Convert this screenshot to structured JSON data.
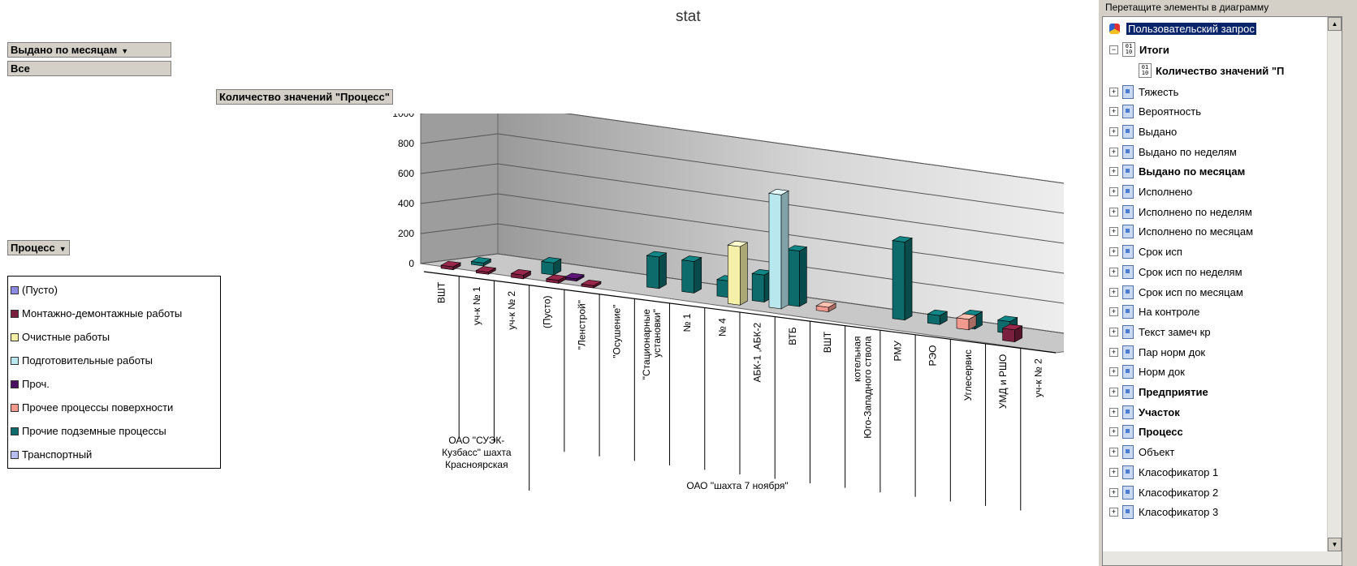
{
  "chart_title": "stat",
  "page_filter": {
    "field": "Выдано по месяцам",
    "value": "Все"
  },
  "data_field": "Количество значений \"Процесс\"",
  "series_field": "Процесс",
  "legend": [
    {
      "name": "(Пусто)",
      "color": "#8b8be3"
    },
    {
      "name": "Монтажно-демонтажные работы",
      "color": "#7a1f3d"
    },
    {
      "name": "Очистные работы",
      "color": "#f5f0a8"
    },
    {
      "name": "Подготовительные работы",
      "color": "#b8e8ee"
    },
    {
      "name": "Проч.",
      "color": "#4b1060"
    },
    {
      "name": "Прочее процессы поверхности",
      "color": "#f29a8e"
    },
    {
      "name": "Прочие подземные процессы",
      "color": "#0d6b6b"
    },
    {
      "name": "Транспортный",
      "color": "#b8bff0"
    }
  ],
  "chart_data": {
    "type": "bar",
    "title": "stat",
    "ylim": [
      0,
      1000
    ],
    "yticks": [
      "1000",
      "800",
      "600",
      "400",
      "200",
      "0"
    ],
    "categories": [
      "ВШТ",
      "уч-к № 1",
      "уч-к № 2",
      "(Пусто)",
      "\"Ленстрой\"",
      "\"Осушение\"",
      "\"Стационарные установки\"",
      "№ 1",
      "№ 4",
      "АБК-1 ,АБК-2",
      "ВТБ",
      "ВШТ",
      "котельная Юго-Западного ствола",
      "РМУ",
      "РЭО",
      "Углесервис",
      "УМД и РШО",
      "уч-к № 2"
    ],
    "groups": [
      {
        "label": "ОАО \"СУЭК-Кузбасс\" шахта Красноярская"
      },
      {
        "label": "ОАО \"шахта 7 ноября\""
      }
    ],
    "bars": [
      {
        "category": "ВШТ",
        "series": "Монтажно-демонтажные работы",
        "value": 20
      },
      {
        "category": "уч-к № 1",
        "series": "Монтажно-демонтажные работы",
        "value": 15
      },
      {
        "category": "уч-к № 2",
        "series": "Монтажно-демонтажные работы",
        "value": 25
      },
      {
        "category": "(Пусто)",
        "series": "Монтажно-демонтажные работы",
        "value": 20
      },
      {
        "category": "(Пусто)",
        "series": "Проч.",
        "value": 15
      },
      {
        "category": "\"Ленстрой\"",
        "series": "Монтажно-демонтажные работы",
        "value": 15
      },
      {
        "category": "\"Осушение\"",
        "series": "Прочие подземные процессы",
        "value": 210
      },
      {
        "category": "\"Стационарные установки\"",
        "series": "Прочие подземные процессы",
        "value": 210
      },
      {
        "category": "№ 1",
        "series": "Прочие подземные процессы",
        "value": 110
      },
      {
        "category": "№ 4",
        "series": "Очистные работы",
        "value": 390
      },
      {
        "category": "№ 4",
        "series": "Прочие подземные процессы",
        "value": 180
      },
      {
        "category": "АБК-1 ,АБК-2",
        "series": "Подготовительные работы",
        "value": 760
      },
      {
        "category": "АБК-1 ,АБК-2",
        "series": "Прочие подземные процессы",
        "value": 370
      },
      {
        "category": "ВТБ",
        "series": "Прочее процессы поверхности",
        "value": 30
      },
      {
        "category": "ВШТ",
        "series": "Прочие подземные процессы",
        "value": 20
      },
      {
        "category": "котельная Юго-Западного ствола",
        "series": "Прочие подземные процессы",
        "value": 520
      },
      {
        "category": "РМУ",
        "series": "Прочие подземные процессы",
        "value": 60
      },
      {
        "category": "РЭО",
        "series": "Прочие подземные процессы",
        "value": 90
      },
      {
        "category": "РЭО",
        "series": "Прочее процессы поверхности",
        "value": 70
      },
      {
        "category": "Углесервис",
        "series": "Прочие подземные процессы",
        "value": 80
      },
      {
        "category": "УМД и РШО",
        "series": "Монтажно-демонтажные работы",
        "value": 80
      },
      {
        "category": "уч-к № 2",
        "series": "Прочие подземные процессы",
        "value": 80
      }
    ]
  },
  "field_list": {
    "title": "Перетащите элементы в диаграмму",
    "root": "Пользовательский запрос",
    "totals": "Итоги",
    "totals_child": "Количество значений \"П",
    "fields": [
      {
        "label": "Тяжесть",
        "bold": false
      },
      {
        "label": "Вероятность",
        "bold": false
      },
      {
        "label": "Выдано",
        "bold": false
      },
      {
        "label": "Выдано по неделям",
        "bold": false
      },
      {
        "label": "Выдано по месяцам",
        "bold": true
      },
      {
        "label": "Исполнено",
        "bold": false
      },
      {
        "label": "Исполнено по неделям",
        "bold": false
      },
      {
        "label": "Исполнено по месяцам",
        "bold": false
      },
      {
        "label": "Срок исп",
        "bold": false
      },
      {
        "label": "Срок исп по неделям",
        "bold": false
      },
      {
        "label": "Срок исп по месяцам",
        "bold": false
      },
      {
        "label": "На контроле",
        "bold": false
      },
      {
        "label": "Текст замеч кр",
        "bold": false
      },
      {
        "label": "Пар норм док",
        "bold": false
      },
      {
        "label": "Норм док",
        "bold": false
      },
      {
        "label": "Предприятие",
        "bold": true
      },
      {
        "label": "Участок",
        "bold": true
      },
      {
        "label": "Процесс",
        "bold": true
      },
      {
        "label": "Объект",
        "bold": false
      },
      {
        "label": "Класофикатор 1",
        "bold": false
      },
      {
        "label": "Класофикатор 2",
        "bold": false
      },
      {
        "label": "Класофикатор 3",
        "bold": false
      }
    ]
  }
}
